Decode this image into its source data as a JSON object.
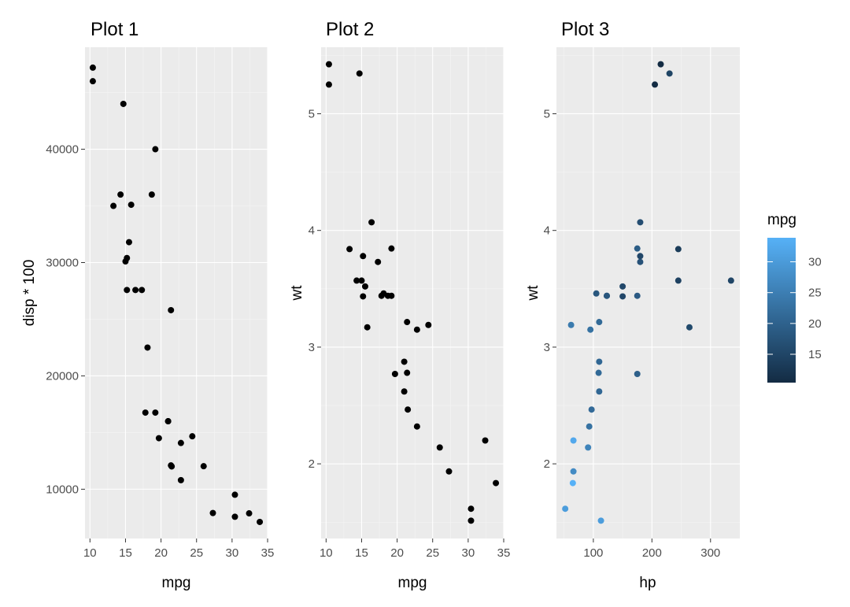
{
  "chart_data": [
    {
      "type": "scatter",
      "title": "Plot 1",
      "xlabel": "mpg",
      "ylabel": "disp * 100",
      "xlim": [
        9.3,
        35.0
      ],
      "ylim": [
        5650,
        49000
      ],
      "xticks": [
        10,
        15,
        20,
        25,
        30,
        35
      ],
      "yticks": [
        10000,
        20000,
        30000,
        40000
      ],
      "point_color": "#000000",
      "points": [
        {
          "x": 21.0,
          "y": 16000
        },
        {
          "x": 21.0,
          "y": 16000
        },
        {
          "x": 22.8,
          "y": 10800
        },
        {
          "x": 21.4,
          "y": 25800
        },
        {
          "x": 18.7,
          "y": 36000
        },
        {
          "x": 18.1,
          "y": 22500
        },
        {
          "x": 14.3,
          "y": 36000
        },
        {
          "x": 24.4,
          "y": 14670
        },
        {
          "x": 22.8,
          "y": 14080
        },
        {
          "x": 19.2,
          "y": 16760
        },
        {
          "x": 17.8,
          "y": 16760
        },
        {
          "x": 16.4,
          "y": 27580
        },
        {
          "x": 17.3,
          "y": 27580
        },
        {
          "x": 15.2,
          "y": 27580
        },
        {
          "x": 10.4,
          "y": 47200
        },
        {
          "x": 10.4,
          "y": 46000
        },
        {
          "x": 14.7,
          "y": 44000
        },
        {
          "x": 32.4,
          "y": 7870
        },
        {
          "x": 30.4,
          "y": 7570
        },
        {
          "x": 33.9,
          "y": 7110
        },
        {
          "x": 21.5,
          "y": 12010
        },
        {
          "x": 15.5,
          "y": 31800
        },
        {
          "x": 15.2,
          "y": 30400
        },
        {
          "x": 13.3,
          "y": 35000
        },
        {
          "x": 19.2,
          "y": 40000
        },
        {
          "x": 27.3,
          "y": 7900
        },
        {
          "x": 26.0,
          "y": 12030
        },
        {
          "x": 30.4,
          "y": 9510
        },
        {
          "x": 15.8,
          "y": 35100
        },
        {
          "x": 19.7,
          "y": 14500
        },
        {
          "x": 15.0,
          "y": 30100
        },
        {
          "x": 21.4,
          "y": 12100
        }
      ]
    },
    {
      "type": "scatter",
      "title": "Plot 2",
      "xlabel": "mpg",
      "ylabel": "wt",
      "xlim": [
        9.3,
        35.0
      ],
      "ylim": [
        1.36,
        5.57
      ],
      "xticks": [
        10,
        15,
        20,
        25,
        30,
        35
      ],
      "yticks": [
        2,
        3,
        4,
        5
      ],
      "point_color": "#000000",
      "points": [
        {
          "x": 21.0,
          "y": 2.62
        },
        {
          "x": 21.0,
          "y": 2.875
        },
        {
          "x": 22.8,
          "y": 2.32
        },
        {
          "x": 21.4,
          "y": 3.215
        },
        {
          "x": 18.7,
          "y": 3.44
        },
        {
          "x": 18.1,
          "y": 3.46
        },
        {
          "x": 14.3,
          "y": 3.57
        },
        {
          "x": 24.4,
          "y": 3.19
        },
        {
          "x": 22.8,
          "y": 3.15
        },
        {
          "x": 19.2,
          "y": 3.44
        },
        {
          "x": 17.8,
          "y": 3.44
        },
        {
          "x": 16.4,
          "y": 4.07
        },
        {
          "x": 17.3,
          "y": 3.73
        },
        {
          "x": 15.2,
          "y": 3.78
        },
        {
          "x": 10.4,
          "y": 5.25
        },
        {
          "x": 10.4,
          "y": 5.424
        },
        {
          "x": 14.7,
          "y": 5.345
        },
        {
          "x": 32.4,
          "y": 2.2
        },
        {
          "x": 30.4,
          "y": 1.615
        },
        {
          "x": 33.9,
          "y": 1.835
        },
        {
          "x": 21.5,
          "y": 2.465
        },
        {
          "x": 15.5,
          "y": 3.52
        },
        {
          "x": 15.2,
          "y": 3.435
        },
        {
          "x": 13.3,
          "y": 3.84
        },
        {
          "x": 19.2,
          "y": 3.845
        },
        {
          "x": 27.3,
          "y": 1.935
        },
        {
          "x": 26.0,
          "y": 2.14
        },
        {
          "x": 30.4,
          "y": 1.513
        },
        {
          "x": 15.8,
          "y": 3.17
        },
        {
          "x": 19.7,
          "y": 2.77
        },
        {
          "x": 15.0,
          "y": 3.57
        },
        {
          "x": 21.4,
          "y": 2.78
        }
      ]
    },
    {
      "type": "scatter",
      "title": "Plot 3",
      "xlabel": "hp",
      "ylabel": "wt",
      "xlim": [
        37.0,
        350.0
      ],
      "ylim": [
        1.36,
        5.57
      ],
      "xticks": [
        100,
        200,
        300
      ],
      "yticks": [
        2,
        3,
        4,
        5
      ],
      "color_by": "mpg",
      "points": [
        {
          "x": 110,
          "y": 2.62,
          "c": 21.0
        },
        {
          "x": 110,
          "y": 2.875,
          "c": 21.0
        },
        {
          "x": 93,
          "y": 2.32,
          "c": 22.8
        },
        {
          "x": 110,
          "y": 3.215,
          "c": 21.4
        },
        {
          "x": 175,
          "y": 3.44,
          "c": 18.7
        },
        {
          "x": 105,
          "y": 3.46,
          "c": 18.1
        },
        {
          "x": 245,
          "y": 3.57,
          "c": 14.3
        },
        {
          "x": 62,
          "y": 3.19,
          "c": 24.4
        },
        {
          "x": 95,
          "y": 3.15,
          "c": 22.8
        },
        {
          "x": 123,
          "y": 3.44,
          "c": 19.2
        },
        {
          "x": 123,
          "y": 3.44,
          "c": 17.8
        },
        {
          "x": 180,
          "y": 4.07,
          "c": 16.4
        },
        {
          "x": 180,
          "y": 3.73,
          "c": 17.3
        },
        {
          "x": 180,
          "y": 3.78,
          "c": 15.2
        },
        {
          "x": 205,
          "y": 5.25,
          "c": 10.4
        },
        {
          "x": 215,
          "y": 5.424,
          "c": 10.4
        },
        {
          "x": 230,
          "y": 5.345,
          "c": 14.7
        },
        {
          "x": 66,
          "y": 2.2,
          "c": 32.4
        },
        {
          "x": 52,
          "y": 1.615,
          "c": 30.4
        },
        {
          "x": 65,
          "y": 1.835,
          "c": 33.9
        },
        {
          "x": 97,
          "y": 2.465,
          "c": 21.5
        },
        {
          "x": 150,
          "y": 3.52,
          "c": 15.5
        },
        {
          "x": 150,
          "y": 3.435,
          "c": 15.2
        },
        {
          "x": 245,
          "y": 3.84,
          "c": 13.3
        },
        {
          "x": 175,
          "y": 3.845,
          "c": 19.2
        },
        {
          "x": 66,
          "y": 1.935,
          "c": 27.3
        },
        {
          "x": 91,
          "y": 2.14,
          "c": 26.0
        },
        {
          "x": 113,
          "y": 1.513,
          "c": 30.4
        },
        {
          "x": 264,
          "y": 3.17,
          "c": 15.8
        },
        {
          "x": 175,
          "y": 2.77,
          "c": 19.7
        },
        {
          "x": 335,
          "y": 3.57,
          "c": 15.0
        },
        {
          "x": 109,
          "y": 2.78,
          "c": 21.4
        }
      ],
      "legend": {
        "title": "mpg",
        "type": "colorbar",
        "range": [
          10.4,
          33.9
        ],
        "ticks": [
          15,
          20,
          25,
          30
        ],
        "low_color": "#132b43",
        "high_color": "#56b1f7"
      }
    }
  ]
}
